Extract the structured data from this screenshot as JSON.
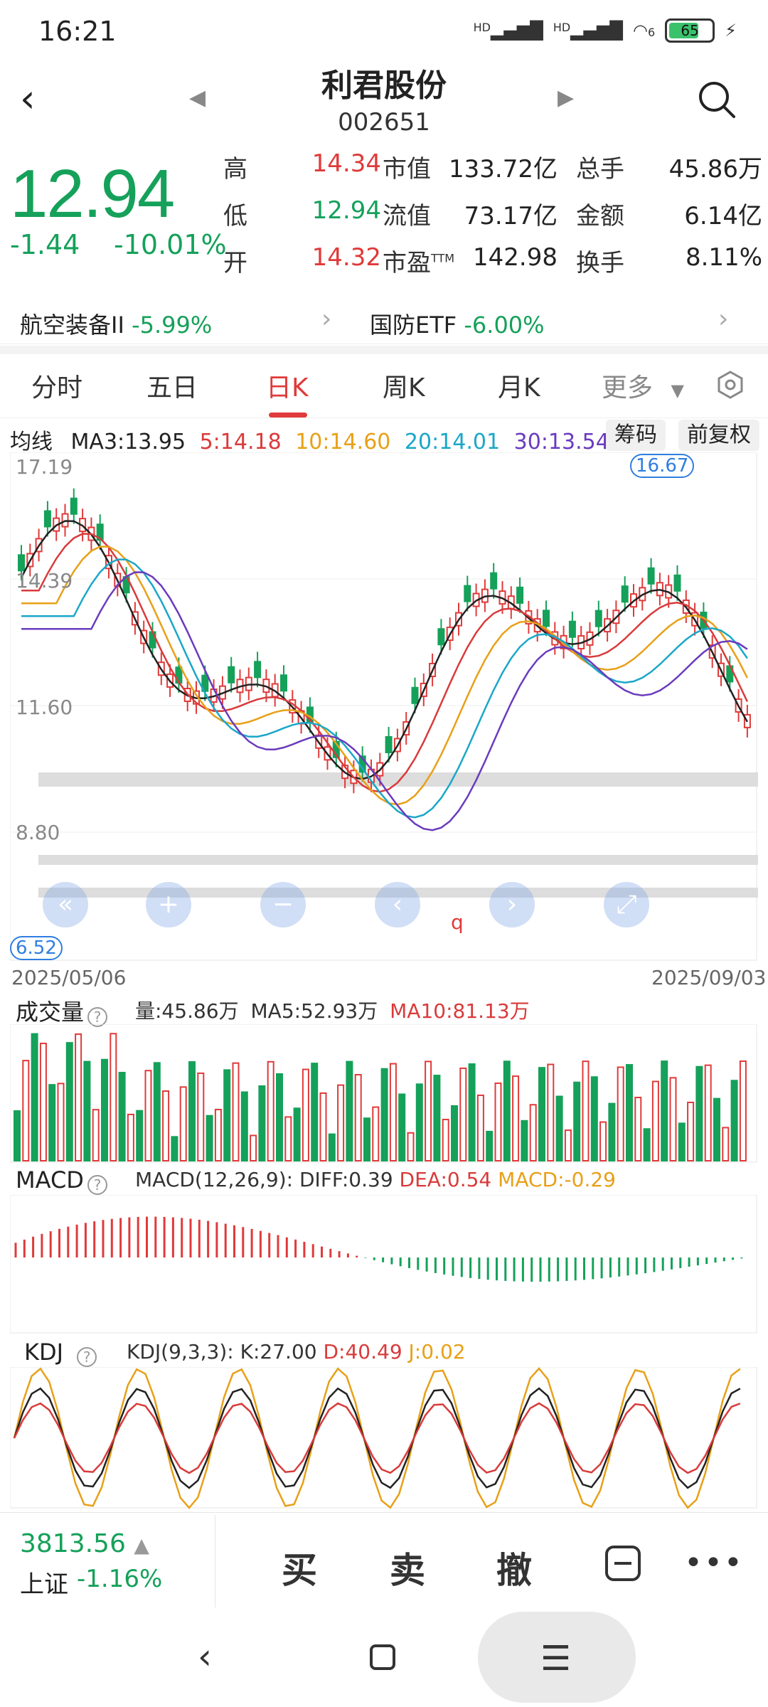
{
  "status_bar": {
    "time": "16:21",
    "signal1": "HD",
    "signal2": "HD",
    "wifi_sub": "6",
    "battery": "65"
  },
  "header": {
    "stock_name": "利君股份",
    "stock_code": "002651"
  },
  "quote": {
    "price": "12.94",
    "change": "-1.44",
    "change_pct": "-10.01%",
    "rows": [
      {
        "l1": "高",
        "v1": "14.34",
        "l2": "市值",
        "v2": "133.72亿",
        "l3": "总手",
        "v3": "45.86万"
      },
      {
        "l1": "低",
        "v1": "12.94",
        "l2": "流值",
        "v2": "73.17亿",
        "l3": "金额",
        "v3": "6.14亿"
      },
      {
        "l1": "开",
        "v1": "14.32",
        "l2": "市盈",
        "l2_sup": "TTM",
        "v2": "142.98",
        "l3": "换手",
        "v3": "8.11%"
      }
    ]
  },
  "sectors": [
    {
      "name": "航空装备II",
      "pct": "-5.99%"
    },
    {
      "name": "国防ETF",
      "pct": "-6.00%"
    }
  ],
  "tabs": [
    "分时",
    "五日",
    "日K",
    "周K",
    "月K",
    "更多"
  ],
  "active_tab": "日K",
  "ma_legend": {
    "label": "均线",
    "ma3": "MA3:13.95",
    "ma5": "5:14.18",
    "ma10": "10:14.60",
    "ma20": "20:14.01",
    "ma30": "30:13.54"
  },
  "chips": {
    "chips_label": "筹码",
    "adjust_label": "前复权"
  },
  "kline": {
    "y_labels": [
      "17.19",
      "14.39",
      "11.60",
      "8.80"
    ],
    "high_marker": "16.67",
    "low_marker": "6.52",
    "start_date": "2025/05/06",
    "end_date": "2025/09/03",
    "hint_char": "q",
    "controls": [
      "«",
      "+",
      "−",
      "‹",
      "›",
      "⤢"
    ]
  },
  "volume": {
    "title": "成交量",
    "vol": "量:45.86万",
    "ma5": "MA5:52.93万",
    "ma10": "MA10:81.13万"
  },
  "macd": {
    "title": "MACD",
    "params": "MACD(12,26,9):",
    "diff": "DIFF:0.39",
    "dea": "DEA:0.54",
    "macd": "MACD:-0.29"
  },
  "kdj": {
    "title": "KDJ",
    "params": "KDJ(9,3,3):",
    "k": "K:27.00",
    "d": "D:40.49",
    "j": "J:0.02"
  },
  "index": {
    "value": "3813.56",
    "name": "上证",
    "change": "-1.16%"
  },
  "trade": {
    "buy": "买",
    "sell": "卖",
    "cancel": "撤"
  },
  "colors": {
    "up": "#e03a3a",
    "down": "#15a15a",
    "ma3": "#222222",
    "ma5": "#d93b3b",
    "ma10": "#e8a018",
    "ma20": "#1aa7c8",
    "ma30": "#6a3bbd"
  }
}
